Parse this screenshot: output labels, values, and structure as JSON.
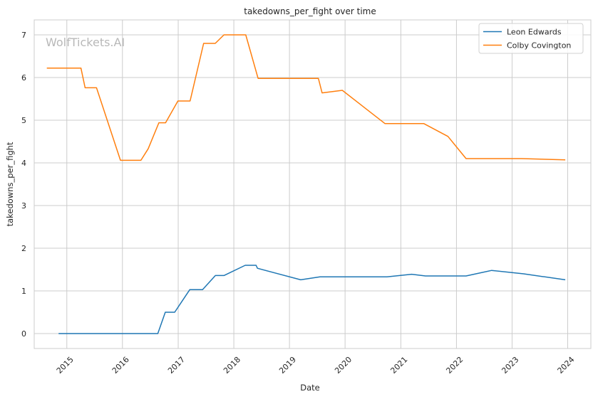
{
  "chart_data": {
    "type": "line",
    "title": "takedowns_per_fight over time",
    "xlabel": "Date",
    "ylabel": "takedowns_per_fight",
    "watermark": "WolfTickets.AI",
    "x_ticks": [
      "2015",
      "2016",
      "2017",
      "2018",
      "2019",
      "2020",
      "2021",
      "2022",
      "2023",
      "2024"
    ],
    "y_ticks": [
      "0",
      "1",
      "2",
      "3",
      "4",
      "5",
      "6",
      "7"
    ],
    "xlim": [
      "2014-06-01",
      "2024-06-01"
    ],
    "ylim": [
      -0.35,
      7.35
    ],
    "grid": true,
    "legend_position": "top-right",
    "series": [
      {
        "name": "Leon Edwards",
        "color": "#1f77b4",
        "points": [
          [
            "2014-11-08",
            0.0
          ],
          [
            "2016-06-01",
            0.0
          ],
          [
            "2016-08-20",
            0.0
          ],
          [
            "2016-10-08",
            0.5
          ],
          [
            "2016-12-09",
            0.5
          ],
          [
            "2017-03-18",
            1.03
          ],
          [
            "2017-06-10",
            1.03
          ],
          [
            "2017-09-02",
            1.36
          ],
          [
            "2017-10-28",
            1.36
          ],
          [
            "2018-03-17",
            1.6
          ],
          [
            "2018-05-27",
            1.6
          ],
          [
            "2018-06-05",
            1.53
          ],
          [
            "2019-03-16",
            1.26
          ],
          [
            "2019-07-20",
            1.33
          ],
          [
            "2020-07-19",
            1.33
          ],
          [
            "2020-10-02",
            1.33
          ],
          [
            "2021-03-13",
            1.39
          ],
          [
            "2021-06-12",
            1.35
          ],
          [
            "2022-03-05",
            1.35
          ],
          [
            "2022-08-20",
            1.48
          ],
          [
            "2023-03-18",
            1.4
          ],
          [
            "2023-12-16",
            1.26
          ]
        ]
      },
      {
        "name": "Colby Covington",
        "color": "#ff7f0e",
        "points": [
          [
            "2014-08-23",
            6.22
          ],
          [
            "2015-04-04",
            6.22
          ],
          [
            "2015-05-01",
            5.76
          ],
          [
            "2015-07-15",
            5.76
          ],
          [
            "2015-12-19",
            4.06
          ],
          [
            "2016-05-01",
            4.06
          ],
          [
            "2016-06-18",
            4.33
          ],
          [
            "2016-08-27",
            4.94
          ],
          [
            "2016-10-10",
            4.94
          ],
          [
            "2016-12-30",
            5.45
          ],
          [
            "2017-03-20",
            5.45
          ],
          [
            "2017-06-17",
            6.8
          ],
          [
            "2017-09-01",
            6.8
          ],
          [
            "2017-10-28",
            7.0
          ],
          [
            "2018-03-20",
            7.0
          ],
          [
            "2018-06-09",
            5.98
          ],
          [
            "2019-07-10",
            5.98
          ],
          [
            "2019-08-03",
            5.64
          ],
          [
            "2019-12-14",
            5.7
          ],
          [
            "2020-09-19",
            4.92
          ],
          [
            "2021-03-01",
            4.92
          ],
          [
            "2021-06-01",
            4.92
          ],
          [
            "2021-11-06",
            4.62
          ],
          [
            "2022-03-05",
            4.1
          ],
          [
            "2023-03-04",
            4.1
          ],
          [
            "2023-12-16",
            4.07
          ]
        ]
      }
    ]
  }
}
